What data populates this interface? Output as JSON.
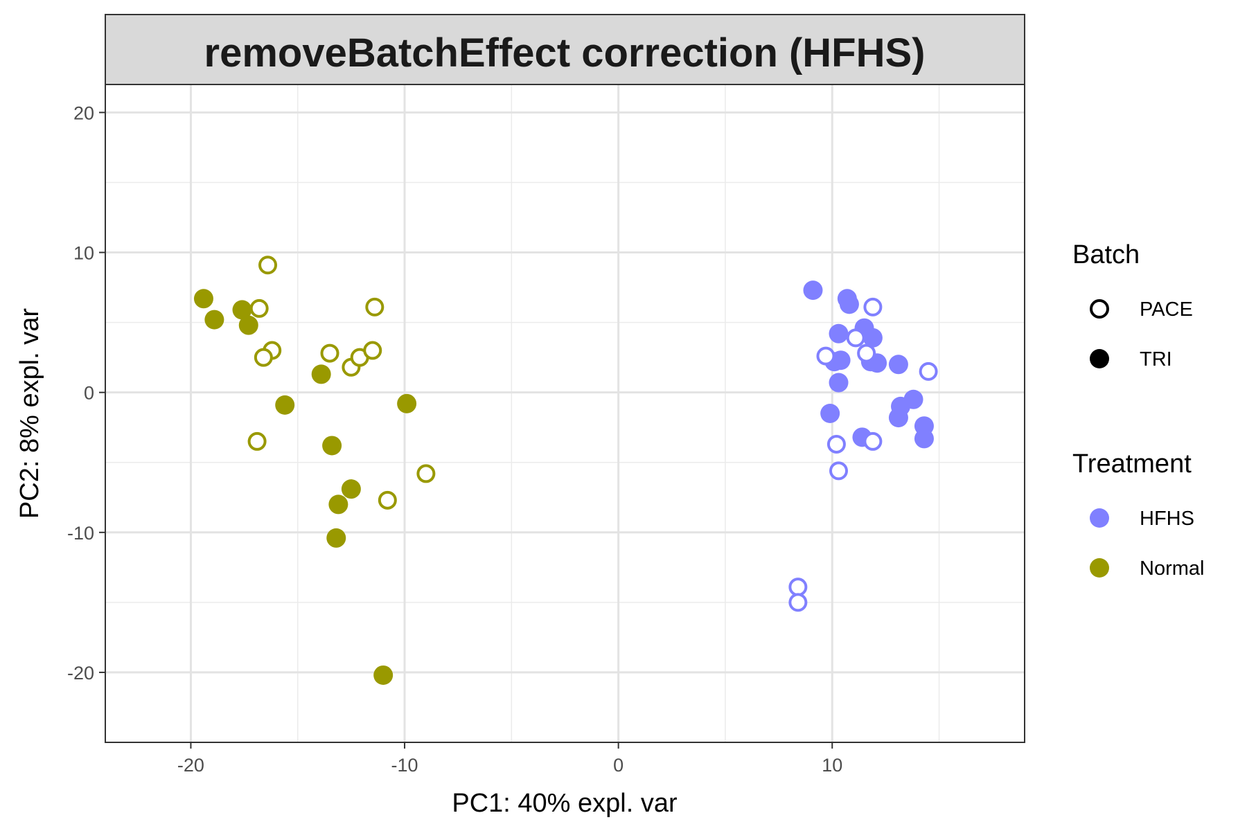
{
  "chart_data": {
    "type": "scatter",
    "title": "removeBatchEffect correction (HFHS)",
    "xlabel": "PC1: 40% expl. var",
    "ylabel": "PC2: 8% expl. var",
    "xlim": [
      -24,
      19
    ],
    "ylim": [
      -25,
      22
    ],
    "x_ticks": [
      -20,
      -10,
      0,
      10
    ],
    "y_ticks": [
      20,
      10,
      0,
      -10,
      -20
    ],
    "x_tick_labels": [
      "-20",
      "-10",
      "0",
      "10"
    ],
    "y_tick_labels": [
      "20",
      "10",
      "0",
      "-10",
      "-20"
    ],
    "grid": true,
    "legend_position": "right",
    "legend": {
      "batch": {
        "title": "Batch",
        "items": [
          {
            "label": "PACE",
            "shape": "open-circle"
          },
          {
            "label": "TRI",
            "shape": "filled-circle"
          }
        ]
      },
      "treatment": {
        "title": "Treatment",
        "items": [
          {
            "label": "HFHS",
            "color": "#8080ff"
          },
          {
            "label": "Normal",
            "color": "#999900"
          }
        ]
      }
    },
    "colors": {
      "HFHS": "#8080ff",
      "Normal": "#999900"
    },
    "series": [
      {
        "treatment": "Normal",
        "batch": "TRI",
        "points": [
          [
            -19.4,
            6.7
          ],
          [
            -18.9,
            5.2
          ],
          [
            -17.6,
            5.9
          ],
          [
            -17.3,
            4.8
          ],
          [
            -15.6,
            -0.9
          ],
          [
            -13.9,
            1.3
          ],
          [
            -13.4,
            -3.8
          ],
          [
            -13.1,
            -8.0
          ],
          [
            -13.2,
            -10.4
          ],
          [
            -12.5,
            -6.9
          ],
          [
            -9.9,
            -0.8
          ],
          [
            -11.0,
            -20.2
          ]
        ]
      },
      {
        "treatment": "Normal",
        "batch": "PACE",
        "points": [
          [
            -16.4,
            9.1
          ],
          [
            -16.8,
            6.0
          ],
          [
            -16.2,
            3.0
          ],
          [
            -16.6,
            2.5
          ],
          [
            -16.9,
            -3.5
          ],
          [
            -13.5,
            2.8
          ],
          [
            -12.5,
            1.8
          ],
          [
            -12.1,
            2.5
          ],
          [
            -11.4,
            6.1
          ],
          [
            -11.5,
            3.0
          ],
          [
            -9.0,
            -5.8
          ],
          [
            -10.8,
            -7.7
          ]
        ]
      },
      {
        "treatment": "HFHS",
        "batch": "TRI",
        "points": [
          [
            9.1,
            7.3
          ],
          [
            10.7,
            6.7
          ],
          [
            10.8,
            6.3
          ],
          [
            10.3,
            4.2
          ],
          [
            11.5,
            4.6
          ],
          [
            11.9,
            3.9
          ],
          [
            10.1,
            2.2
          ],
          [
            10.4,
            2.3
          ],
          [
            11.8,
            2.2
          ],
          [
            12.1,
            2.1
          ],
          [
            13.1,
            2.0
          ],
          [
            10.3,
            0.7
          ],
          [
            9.9,
            -1.5
          ],
          [
            13.8,
            -0.5
          ],
          [
            13.2,
            -1.0
          ],
          [
            13.1,
            -1.8
          ],
          [
            14.3,
            -2.4
          ],
          [
            14.3,
            -3.3
          ],
          [
            11.4,
            -3.2
          ]
        ]
      },
      {
        "treatment": "HFHS",
        "batch": "PACE",
        "points": [
          [
            11.9,
            6.1
          ],
          [
            11.1,
            3.9
          ],
          [
            11.6,
            2.8
          ],
          [
            9.7,
            2.6
          ],
          [
            14.5,
            1.5
          ],
          [
            10.2,
            -3.7
          ],
          [
            11.9,
            -3.5
          ],
          [
            10.3,
            -5.6
          ],
          [
            8.4,
            -13.9
          ],
          [
            8.4,
            -15.0
          ]
        ]
      }
    ]
  }
}
